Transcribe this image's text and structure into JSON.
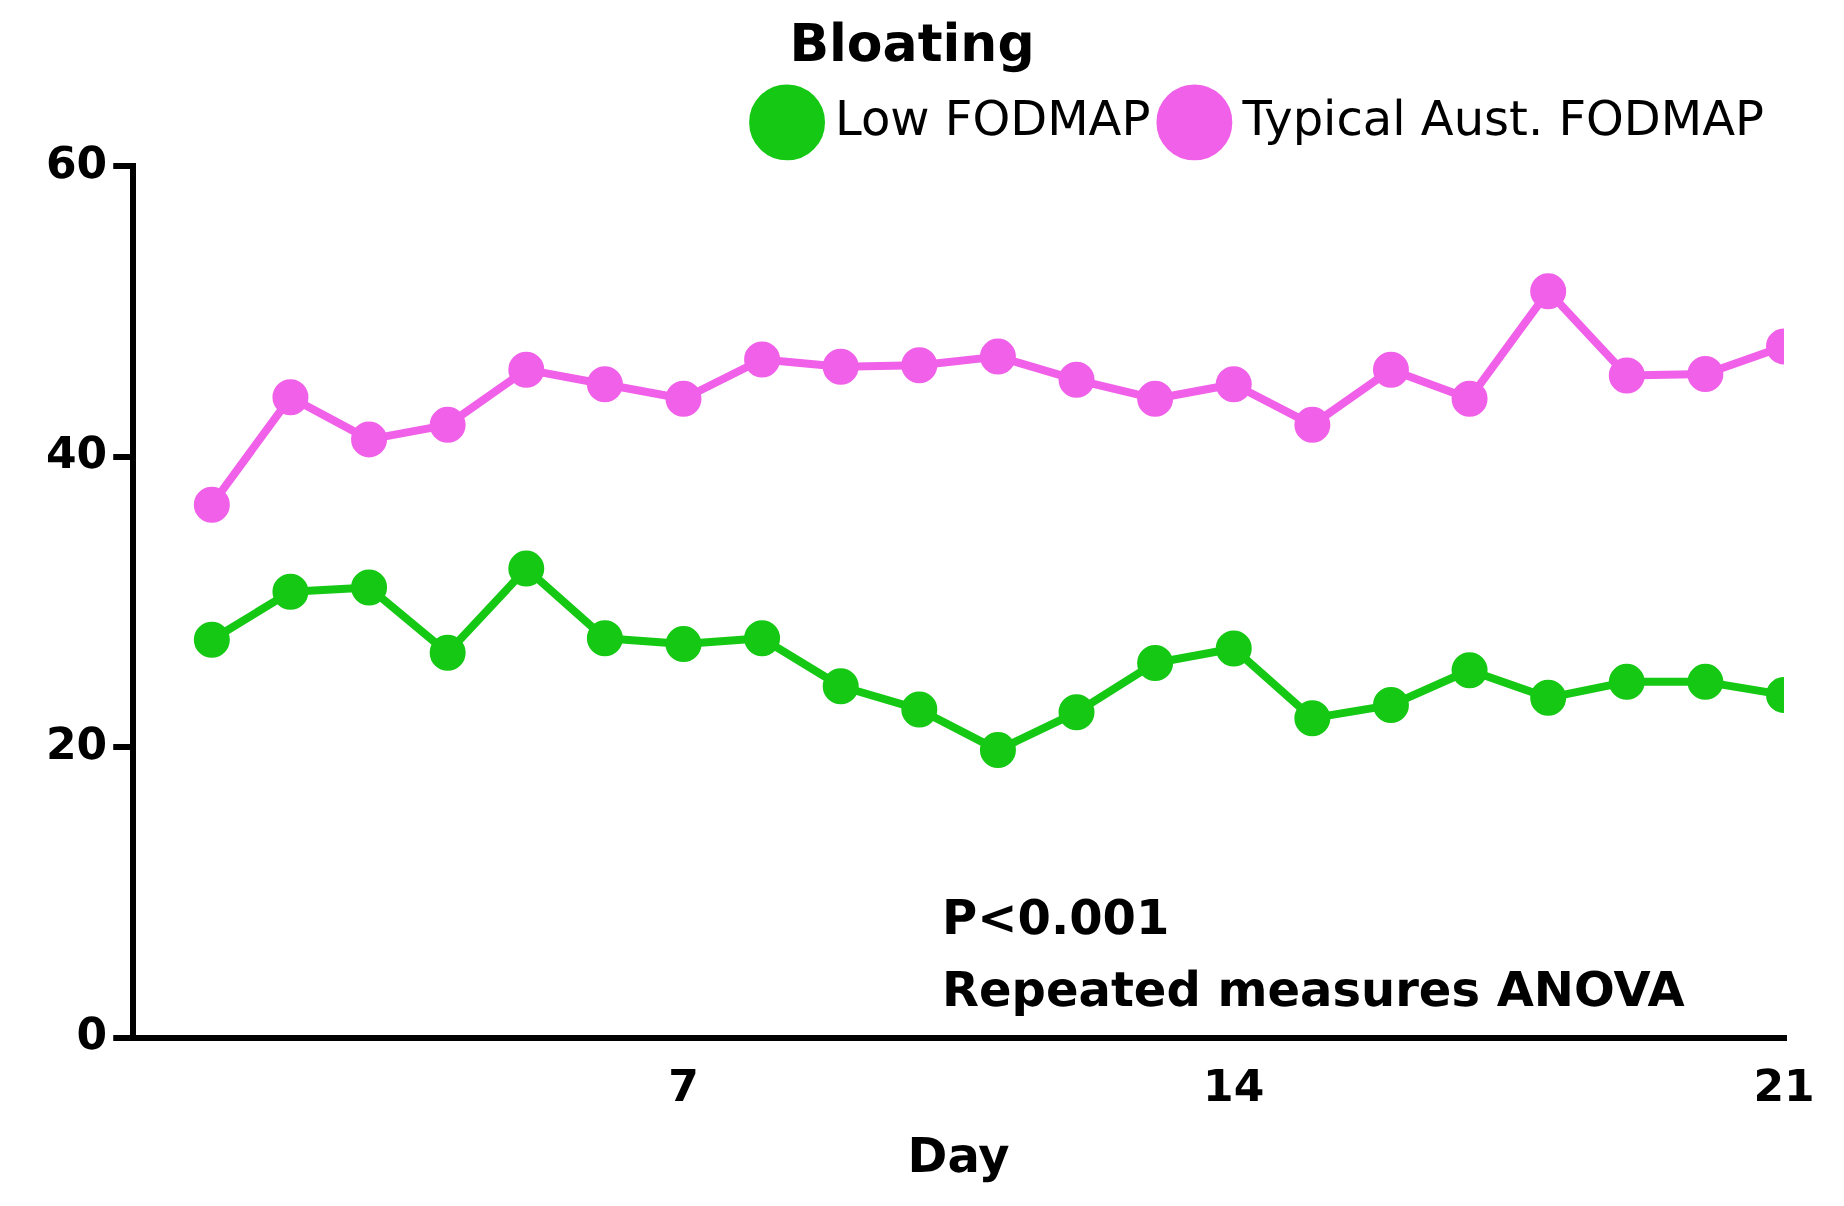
{
  "chart_data": {
    "type": "line",
    "title": "Bloating",
    "xlabel": "Day",
    "x": [
      1,
      2,
      3,
      4,
      5,
      6,
      7,
      8,
      9,
      10,
      11,
      12,
      13,
      14,
      15,
      16,
      17,
      18,
      19,
      20,
      21
    ],
    "series": [
      {
        "name": "Low FODMAP",
        "color": "#14c814",
        "values": [
          27.4,
          30.7,
          31.0,
          26.5,
          32.3,
          27.5,
          27.1,
          27.5,
          24.2,
          22.6,
          19.8,
          22.4,
          25.8,
          26.8,
          22.0,
          22.9,
          25.3,
          23.4,
          24.5,
          24.5,
          23.6
        ]
      },
      {
        "name": "Typical Aust. FODMAP",
        "color": "#f060e8",
        "values": [
          36.7,
          44.1,
          41.2,
          42.2,
          46.0,
          45.0,
          44.0,
          46.7,
          46.2,
          46.3,
          46.9,
          45.3,
          44.0,
          45.0,
          42.2,
          46.0,
          44.0,
          51.4,
          45.6,
          45.7,
          47.6
        ]
      }
    ],
    "xlim": [
      0,
      21
    ],
    "xticks": [
      7,
      14,
      21
    ],
    "ylim": [
      0,
      60
    ],
    "yticks": [
      0,
      20,
      40,
      60
    ],
    "grid": false,
    "legend": "top right",
    "marker": "circle",
    "line_style": "solid",
    "annotations": [
      "P<0.001",
      "Repeated measures ANOVA"
    ]
  }
}
